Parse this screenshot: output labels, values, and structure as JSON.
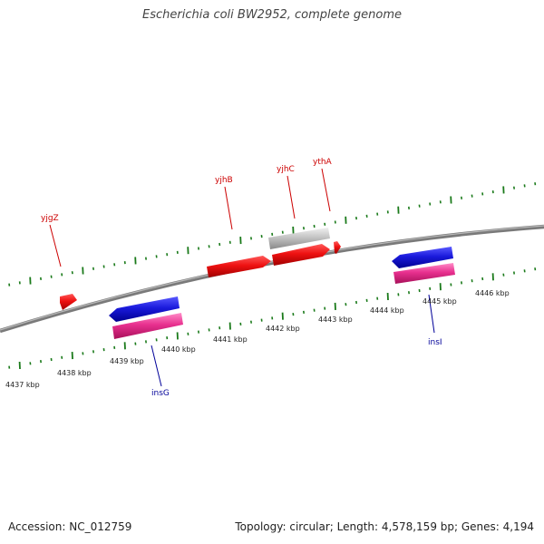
{
  "title": "Escherichia coli BW2952, complete genome",
  "footer": {
    "accession": "Accession: NC_012759",
    "summary": "Topology: circular; Length: 4,578,159 bp; Genes: 4,194"
  },
  "colors": {
    "forward_gene": "#ee1111",
    "reverse_gene": "#1a1adc",
    "rna_feature": "#e8308f",
    "gray_feature": "#bbbbbb",
    "tick": "#1a7a1a",
    "forward_label": "#cc0000",
    "reverse_label": "#000099",
    "backbone": "#888888"
  },
  "kbp_labels": [
    "4437 kbp",
    "4438 kbp",
    "4439 kbp",
    "4440 kbp",
    "4441 kbp",
    "4442 kbp",
    "4443 kbp",
    "4444 kbp",
    "4445 kbp",
    "4446 kbp"
  ],
  "gene_labels": [
    "yjgZ",
    "yjhB",
    "yjhC",
    "ythA",
    "insG",
    "insI"
  ]
}
